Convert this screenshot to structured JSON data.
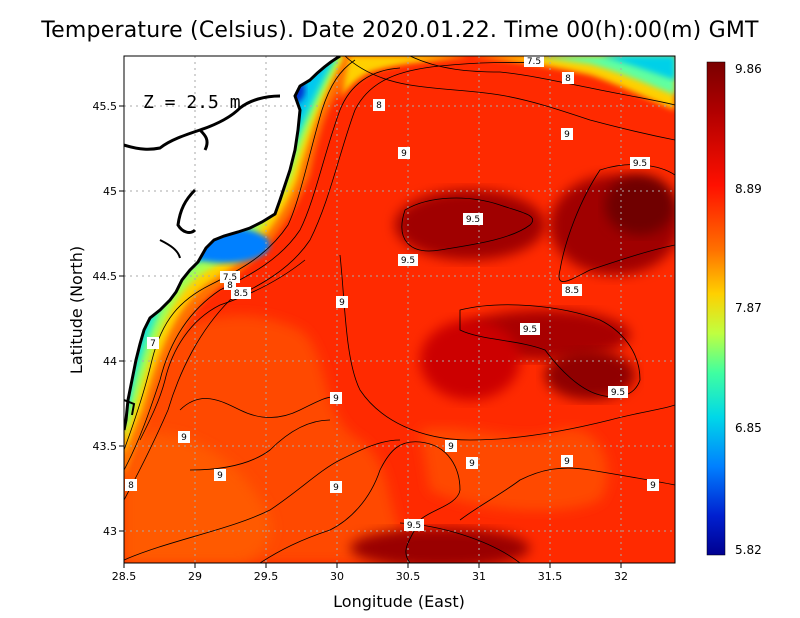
{
  "title": "Temperature (Celsius). Date 2020.01.22. Time 00(h):00(m)  GMT",
  "depth_label": "Z  =  2.5  m",
  "xlabel": "Longitude (East)",
  "ylabel": "Latitude (North)",
  "x_ticks": [
    "28.5",
    "29",
    "29.5",
    "30",
    "30.5",
    "31",
    "31.5",
    "32"
  ],
  "y_ticks": [
    "43",
    "43.5",
    "44",
    "44.5",
    "45",
    "45.5"
  ],
  "colorbar": {
    "labels": [
      "9.86",
      "8.89",
      "7.87",
      "6.85",
      "5.82"
    ],
    "colors": [
      "#7a0000",
      "#d00000",
      "#ff3000",
      "#ff8800",
      "#ffe000",
      "#c8ff30",
      "#50ff90",
      "#00e0e0",
      "#0090ff",
      "#0030d0",
      "#000090"
    ]
  },
  "contour_labels": [
    {
      "text": "7.5"
    },
    {
      "text": "8"
    },
    {
      "text": "8"
    },
    {
      "text": "9"
    },
    {
      "text": "9"
    },
    {
      "text": "9.5"
    },
    {
      "text": "9.5"
    },
    {
      "text": "9.5"
    },
    {
      "text": "7.5"
    },
    {
      "text": "8.5"
    },
    {
      "text": "8"
    },
    {
      "text": "9"
    },
    {
      "text": "8.5"
    },
    {
      "text": "9.5"
    },
    {
      "text": "7"
    },
    {
      "text": "9.5"
    },
    {
      "text": "9"
    },
    {
      "text": "9"
    },
    {
      "text": "9"
    },
    {
      "text": "9"
    },
    {
      "text": "9"
    },
    {
      "text": "9"
    },
    {
      "text": "9"
    },
    {
      "text": "8"
    },
    {
      "text": "9"
    },
    {
      "text": "9.5"
    }
  ],
  "chart_data": {
    "type": "heatmap",
    "variable": "Temperature (Celsius)",
    "date": "2020.01.22",
    "time": "00(h):00(m) GMT",
    "depth": "2.5 m",
    "xlim": [
      28.5,
      32.4
    ],
    "ylim": [
      42.8,
      45.8
    ],
    "x_ticks": [
      28.5,
      29,
      29.5,
      30,
      30.5,
      31,
      31.5,
      32
    ],
    "y_ticks": [
      43,
      43.5,
      44,
      44.5,
      45,
      45.5
    ],
    "color_range": [
      5.82,
      9.86
    ],
    "contour_levels": [
      7,
      7.5,
      8,
      8.5,
      9,
      9.5
    ]
  }
}
